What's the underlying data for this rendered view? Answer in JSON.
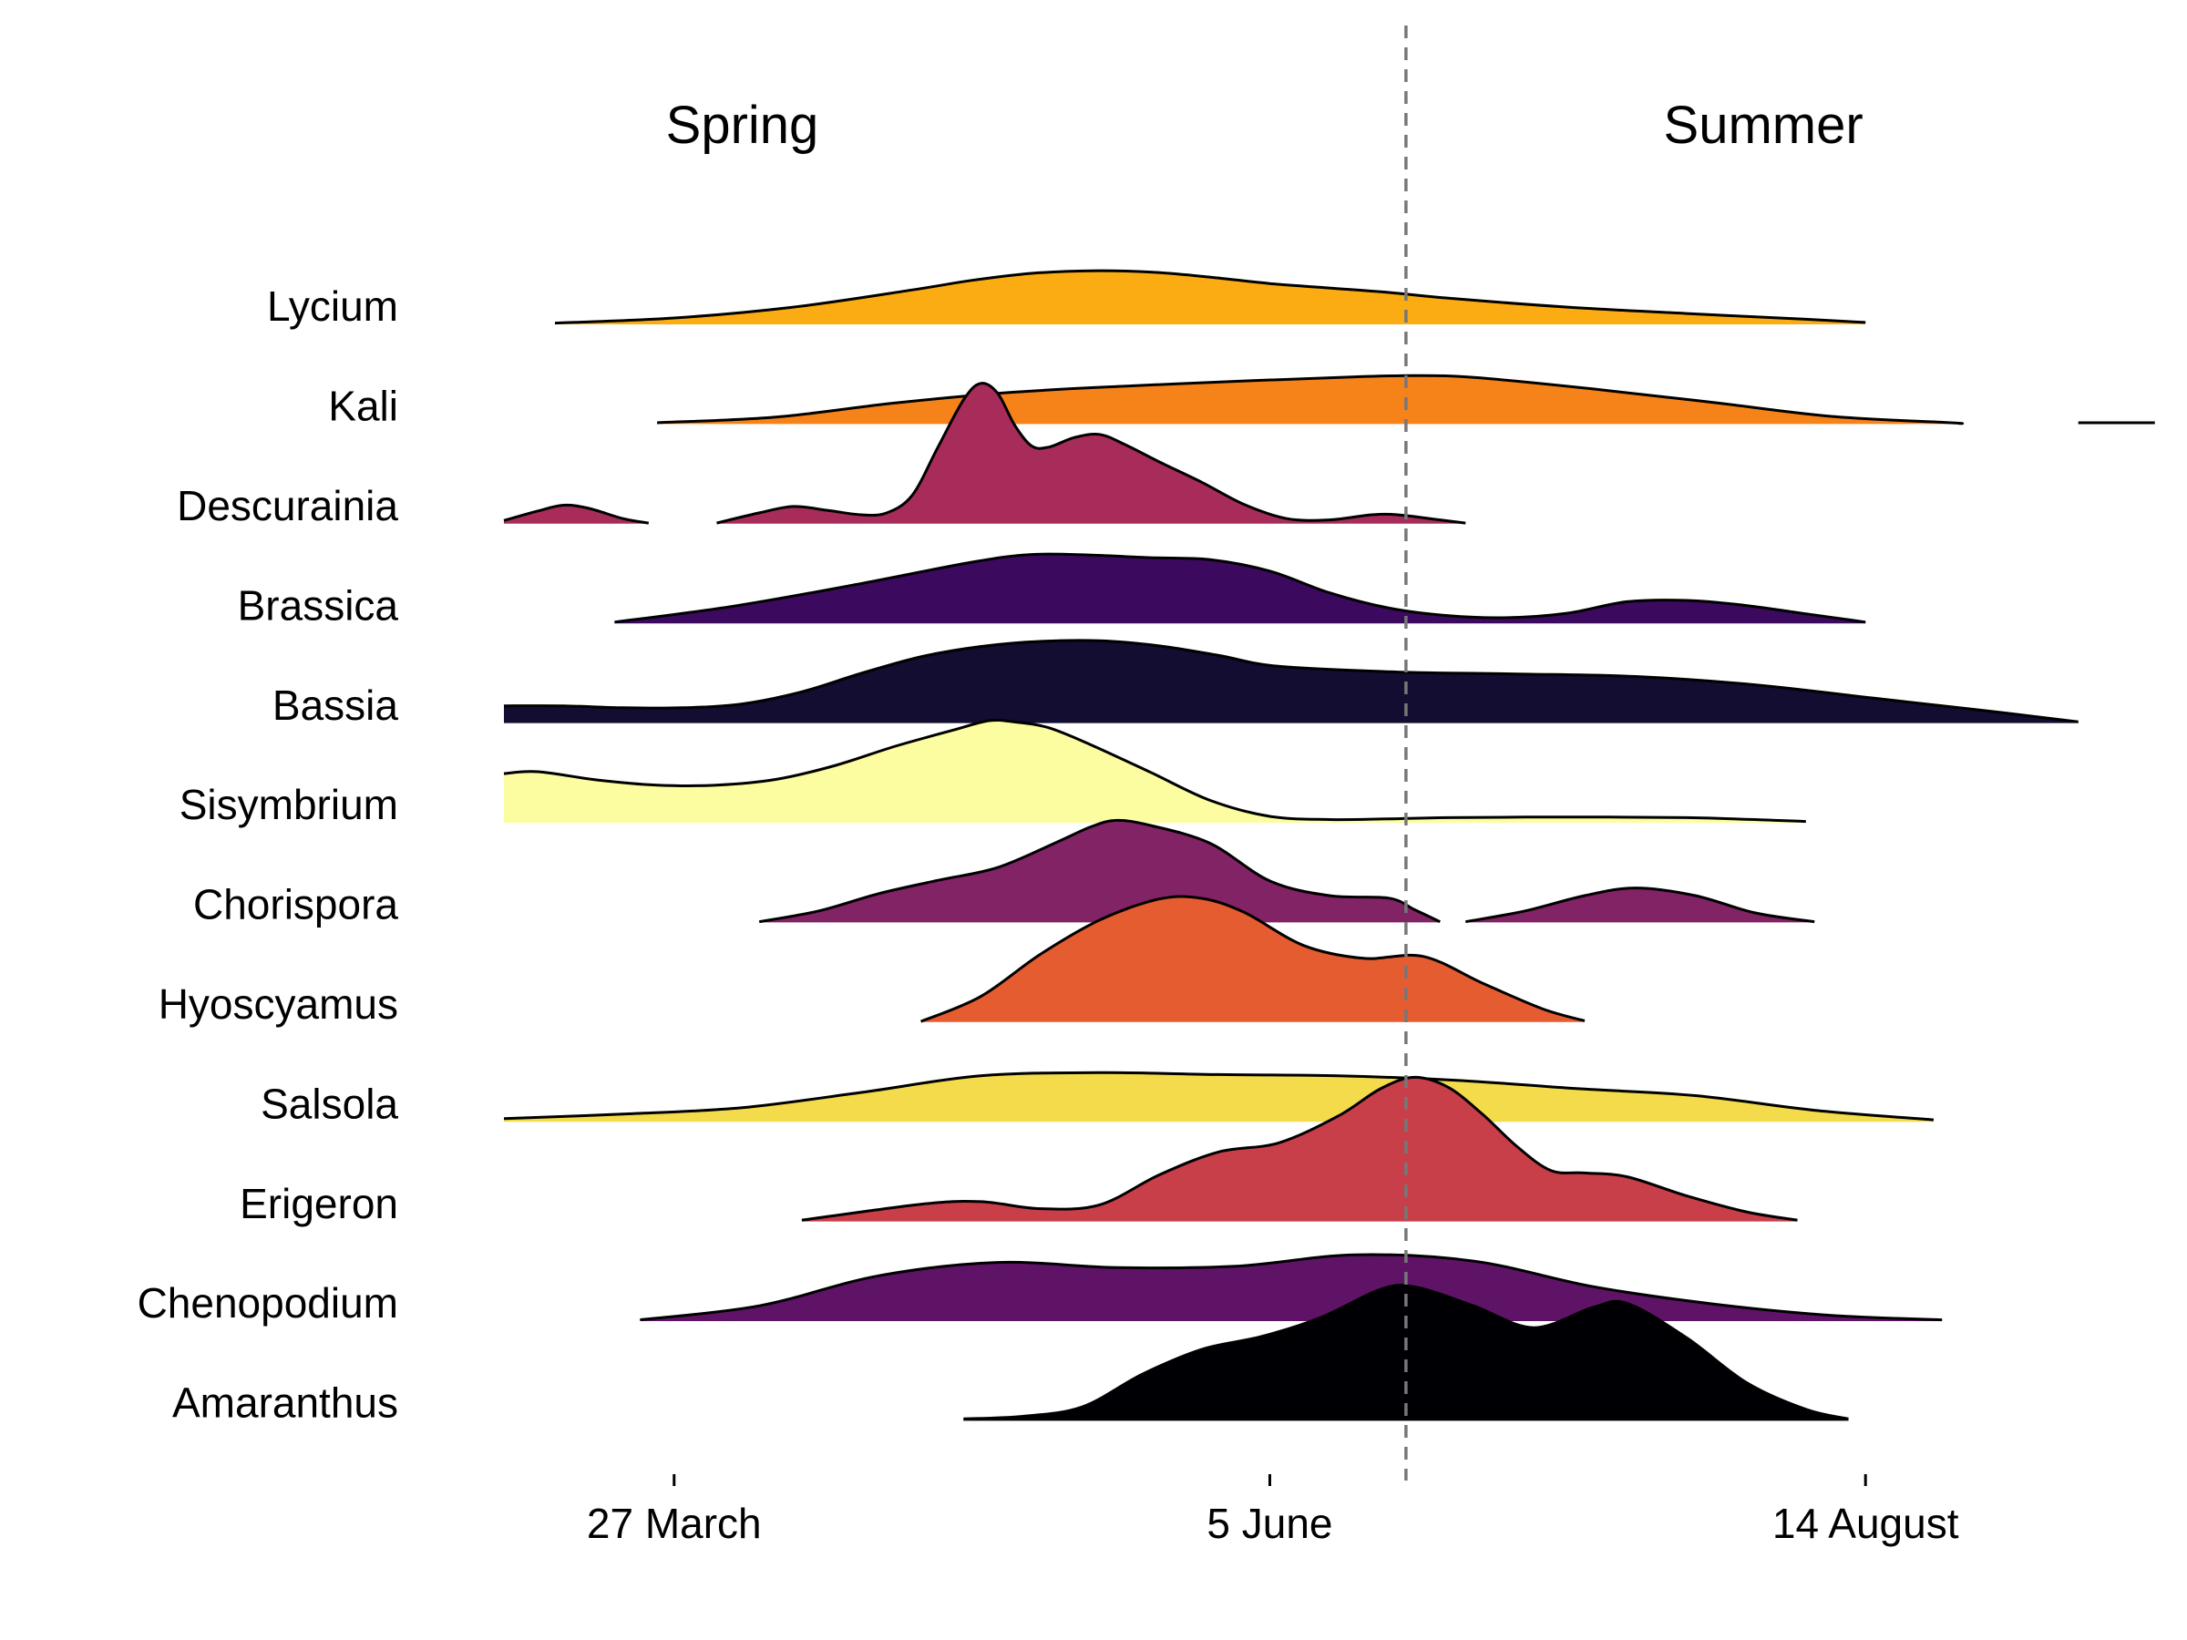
{
  "chart_data": {
    "type": "ridgeline",
    "title": "",
    "xlabel": "",
    "ylabel": "",
    "x_unit": "date",
    "xlim": [
      "2024-03-07",
      "2024-09-09"
    ],
    "x_ticks": [
      {
        "date": "2024-03-27",
        "label": "27 March"
      },
      {
        "date": "2024-06-05",
        "label": "5 June"
      },
      {
        "date": "2024-08-14",
        "label": "14 August"
      }
    ],
    "divider": {
      "date": "2024-06-21",
      "style": "dashed",
      "color": "#777777"
    },
    "season_labels": [
      {
        "label": "Spring",
        "date": "2024-04-04"
      },
      {
        "label": "Summer",
        "date": "2024-08-02"
      }
    ],
    "grid": false,
    "legend": "none",
    "series": [
      {
        "name": "Lycium",
        "color": "#FBAC13",
        "segments": [
          [
            [
              "2024-03-13",
              0.02
            ],
            [
              "2024-03-27",
              0.1
            ],
            [
              "2024-04-10",
              0.27
            ],
            [
              "2024-04-24",
              0.54
            ],
            [
              "2024-05-01",
              0.69
            ],
            [
              "2024-05-08",
              0.8
            ],
            [
              "2024-05-15",
              0.84
            ],
            [
              "2024-05-22",
              0.82
            ],
            [
              "2024-05-29",
              0.74
            ],
            [
              "2024-06-05",
              0.64
            ],
            [
              "2024-06-12",
              0.57
            ],
            [
              "2024-06-19",
              0.5
            ],
            [
              "2024-06-26",
              0.41
            ],
            [
              "2024-07-10",
              0.27
            ],
            [
              "2024-07-24",
              0.17
            ],
            [
              "2024-08-07",
              0.08
            ],
            [
              "2024-08-14",
              0.03
            ]
          ]
        ]
      },
      {
        "name": "Kali",
        "color": "#F6831A",
        "segments": [
          [
            [
              "2024-03-25",
              0.02
            ],
            [
              "2024-04-08",
              0.11
            ],
            [
              "2024-04-22",
              0.33
            ],
            [
              "2024-05-06",
              0.5
            ],
            [
              "2024-05-20",
              0.6
            ],
            [
              "2024-06-03",
              0.68
            ],
            [
              "2024-06-15",
              0.74
            ],
            [
              "2024-06-22",
              0.76
            ],
            [
              "2024-06-29",
              0.73
            ],
            [
              "2024-07-13",
              0.55
            ],
            [
              "2024-07-27",
              0.34
            ],
            [
              "2024-08-10",
              0.12
            ],
            [
              "2024-08-24",
              0.02
            ],
            [
              "2024-08-25",
              0.01
            ]
          ],
          [
            [
              "2024-09-08",
              0.02
            ],
            [
              "2024-09-17",
              0.02
            ]
          ]
        ]
      },
      {
        "name": "Descurainia",
        "color": "#A82C5A",
        "segments": [
          [
            [
              "2024-03-07",
              0.05
            ],
            [
              "2024-03-11",
              0.2
            ],
            [
              "2024-03-14",
              0.29
            ],
            [
              "2024-03-17",
              0.24
            ],
            [
              "2024-03-21",
              0.08
            ],
            [
              "2024-03-24",
              0.01
            ]
          ],
          [
            [
              "2024-04-01",
              0.01
            ],
            [
              "2024-04-06",
              0.17
            ],
            [
              "2024-04-10",
              0.27
            ],
            [
              "2024-04-14",
              0.21
            ],
            [
              "2024-04-18",
              0.14
            ],
            [
              "2024-04-21",
              0.17
            ],
            [
              "2024-04-24",
              0.45
            ],
            [
              "2024-04-27",
              1.2
            ],
            [
              "2024-04-30",
              1.94
            ],
            [
              "2024-05-02",
              2.2
            ],
            [
              "2024-05-04",
              2.05
            ],
            [
              "2024-05-06",
              1.55
            ],
            [
              "2024-05-08",
              1.22
            ],
            [
              "2024-05-10",
              1.2
            ],
            [
              "2024-05-13",
              1.35
            ],
            [
              "2024-05-16",
              1.4
            ],
            [
              "2024-05-19",
              1.24
            ],
            [
              "2024-05-23",
              0.97
            ],
            [
              "2024-05-28",
              0.65
            ],
            [
              "2024-06-02",
              0.3
            ],
            [
              "2024-06-07",
              0.08
            ],
            [
              "2024-06-12",
              0.06
            ],
            [
              "2024-06-17",
              0.14
            ],
            [
              "2024-06-20",
              0.14
            ],
            [
              "2024-06-25",
              0.06
            ],
            [
              "2024-06-28",
              0.01
            ]
          ]
        ]
      },
      {
        "name": "Brassica",
        "color": "#3B0A5E",
        "segments": [
          [
            [
              "2024-03-20",
              0.02
            ],
            [
              "2024-04-03",
              0.27
            ],
            [
              "2024-04-17",
              0.6
            ],
            [
              "2024-05-01",
              0.96
            ],
            [
              "2024-05-08",
              1.08
            ],
            [
              "2024-05-15",
              1.07
            ],
            [
              "2024-05-22",
              1.03
            ],
            [
              "2024-05-29",
              1.0
            ],
            [
              "2024-06-05",
              0.82
            ],
            [
              "2024-06-12",
              0.48
            ],
            [
              "2024-06-19",
              0.24
            ],
            [
              "2024-06-26",
              0.12
            ],
            [
              "2024-07-03",
              0.09
            ],
            [
              "2024-07-10",
              0.16
            ],
            [
              "2024-07-17",
              0.34
            ],
            [
              "2024-07-24",
              0.36
            ],
            [
              "2024-07-31",
              0.28
            ],
            [
              "2024-08-07",
              0.15
            ],
            [
              "2024-08-14",
              0.02
            ]
          ]
        ]
      },
      {
        "name": "Bassia",
        "color": "#120D31",
        "segments": [
          [
            [
              "2024-03-07",
              0.27
            ],
            [
              "2024-03-14",
              0.27
            ],
            [
              "2024-03-21",
              0.24
            ],
            [
              "2024-03-28",
              0.24
            ],
            [
              "2024-04-04",
              0.3
            ],
            [
              "2024-04-11",
              0.49
            ],
            [
              "2024-04-18",
              0.78
            ],
            [
              "2024-04-25",
              1.04
            ],
            [
              "2024-05-02",
              1.2
            ],
            [
              "2024-05-09",
              1.28
            ],
            [
              "2024-05-16",
              1.29
            ],
            [
              "2024-05-23",
              1.21
            ],
            [
              "2024-05-30",
              1.06
            ],
            [
              "2024-06-06",
              0.89
            ],
            [
              "2024-06-20",
              0.8
            ],
            [
              "2024-07-04",
              0.77
            ],
            [
              "2024-07-18",
              0.73
            ],
            [
              "2024-08-01",
              0.6
            ],
            [
              "2024-08-15",
              0.39
            ],
            [
              "2024-08-29",
              0.18
            ],
            [
              "2024-09-08",
              0.02
            ]
          ]
        ]
      },
      {
        "name": "Sisymbrium",
        "color": "#FBFDA0",
        "segments": [
          [
            [
              "2024-03-07",
              0.77
            ],
            [
              "2024-03-11",
              0.8
            ],
            [
              "2024-03-18",
              0.67
            ],
            [
              "2024-03-25",
              0.59
            ],
            [
              "2024-04-01",
              0.59
            ],
            [
              "2024-04-08",
              0.68
            ],
            [
              "2024-04-15",
              0.9
            ],
            [
              "2024-04-22",
              1.2
            ],
            [
              "2024-04-29",
              1.46
            ],
            [
              "2024-05-03",
              1.6
            ],
            [
              "2024-05-06",
              1.58
            ],
            [
              "2024-05-10",
              1.49
            ],
            [
              "2024-05-15",
              1.22
            ],
            [
              "2024-05-22",
              0.79
            ],
            [
              "2024-05-29",
              0.35
            ],
            [
              "2024-06-05",
              0.1
            ],
            [
              "2024-06-12",
              0.05
            ],
            [
              "2024-06-19",
              0.06
            ],
            [
              "2024-06-26",
              0.08
            ],
            [
              "2024-07-10",
              0.09
            ],
            [
              "2024-07-24",
              0.08
            ],
            [
              "2024-08-03",
              0.04
            ],
            [
              "2024-08-07",
              0.02
            ]
          ]
        ]
      },
      {
        "name": "Chorispora",
        "color": "#822366",
        "segments": [
          [
            [
              "2024-04-06",
              0.01
            ],
            [
              "2024-04-13",
              0.18
            ],
            [
              "2024-04-20",
              0.45
            ],
            [
              "2024-04-27",
              0.66
            ],
            [
              "2024-05-04",
              0.86
            ],
            [
              "2024-05-11",
              1.26
            ],
            [
              "2024-05-15",
              1.5
            ],
            [
              "2024-05-18",
              1.6
            ],
            [
              "2024-05-22",
              1.52
            ],
            [
              "2024-05-29",
              1.24
            ],
            [
              "2024-06-05",
              0.65
            ],
            [
              "2024-06-12",
              0.42
            ],
            [
              "2024-06-19",
              0.38
            ],
            [
              "2024-06-22",
              0.2
            ],
            [
              "2024-06-25",
              0.01
            ]
          ],
          [
            [
              "2024-06-28",
              0.01
            ],
            [
              "2024-07-05",
              0.18
            ],
            [
              "2024-07-12",
              0.42
            ],
            [
              "2024-07-18",
              0.54
            ],
            [
              "2024-07-25",
              0.42
            ],
            [
              "2024-08-01",
              0.15
            ],
            [
              "2024-08-08",
              0.01
            ]
          ]
        ]
      },
      {
        "name": "Hyoscyamus",
        "color": "#E55C30",
        "segments": [
          [
            [
              "2024-04-25",
              0.01
            ],
            [
              "2024-05-02",
              0.4
            ],
            [
              "2024-05-09",
              1.06
            ],
            [
              "2024-05-16",
              1.6
            ],
            [
              "2024-05-23",
              1.93
            ],
            [
              "2024-05-28",
              1.94
            ],
            [
              "2024-06-02",
              1.72
            ],
            [
              "2024-06-09",
              1.2
            ],
            [
              "2024-06-16",
              1.0
            ],
            [
              "2024-06-23",
              1.03
            ],
            [
              "2024-06-30",
              0.61
            ],
            [
              "2024-07-07",
              0.21
            ],
            [
              "2024-07-12",
              0.02
            ]
          ]
        ]
      },
      {
        "name": "Salsola",
        "color": "#F3DB4B",
        "segments": [
          [
            [
              "2024-03-07",
              0.05
            ],
            [
              "2024-03-21",
              0.12
            ],
            [
              "2024-04-04",
              0.22
            ],
            [
              "2024-04-18",
              0.46
            ],
            [
              "2024-05-02",
              0.72
            ],
            [
              "2024-05-16",
              0.77
            ],
            [
              "2024-05-30",
              0.74
            ],
            [
              "2024-06-13",
              0.72
            ],
            [
              "2024-06-27",
              0.65
            ],
            [
              "2024-07-11",
              0.52
            ],
            [
              "2024-07-25",
              0.41
            ],
            [
              "2024-08-08",
              0.18
            ],
            [
              "2024-08-22",
              0.03
            ]
          ]
        ]
      },
      {
        "name": "Erigeron",
        "color": "#C83F4A",
        "segments": [
          [
            [
              "2024-04-11",
              0.02
            ],
            [
              "2024-04-25",
              0.27
            ],
            [
              "2024-05-02",
              0.31
            ],
            [
              "2024-05-09",
              0.2
            ],
            [
              "2024-05-16",
              0.26
            ],
            [
              "2024-05-23",
              0.73
            ],
            [
              "2024-05-30",
              1.09
            ],
            [
              "2024-06-06",
              1.23
            ],
            [
              "2024-06-13",
              1.65
            ],
            [
              "2024-06-18",
              2.08
            ],
            [
              "2024-06-22",
              2.26
            ],
            [
              "2024-06-26",
              2.1
            ],
            [
              "2024-06-30",
              1.68
            ],
            [
              "2024-07-04",
              1.18
            ],
            [
              "2024-07-08",
              0.8
            ],
            [
              "2024-07-12",
              0.76
            ],
            [
              "2024-07-17",
              0.7
            ],
            [
              "2024-07-24",
              0.4
            ],
            [
              "2024-07-31",
              0.15
            ],
            [
              "2024-08-06",
              0.02
            ]
          ]
        ]
      },
      {
        "name": "Chenopodium",
        "color": "#5F1367",
        "segments": [
          [
            [
              "2024-03-23",
              0.02
            ],
            [
              "2024-04-06",
              0.24
            ],
            [
              "2024-04-20",
              0.71
            ],
            [
              "2024-05-04",
              0.92
            ],
            [
              "2024-05-18",
              0.84
            ],
            [
              "2024-06-01",
              0.86
            ],
            [
              "2024-06-15",
              1.04
            ],
            [
              "2024-06-29",
              0.94
            ],
            [
              "2024-07-13",
              0.54
            ],
            [
              "2024-07-27",
              0.27
            ],
            [
              "2024-08-10",
              0.09
            ],
            [
              "2024-08-23",
              0.02
            ]
          ]
        ]
      },
      {
        "name": "Amaranthus",
        "color": "#000004",
        "segments": [
          [
            [
              "2024-04-30",
              0.03
            ],
            [
              "2024-05-07",
              0.07
            ],
            [
              "2024-05-14",
              0.22
            ],
            [
              "2024-05-21",
              0.73
            ],
            [
              "2024-05-28",
              1.12
            ],
            [
              "2024-06-04",
              1.32
            ],
            [
              "2024-06-11",
              1.62
            ],
            [
              "2024-06-18",
              2.06
            ],
            [
              "2024-06-22",
              2.1
            ],
            [
              "2024-06-29",
              1.8
            ],
            [
              "2024-07-06",
              1.46
            ],
            [
              "2024-07-13",
              1.78
            ],
            [
              "2024-07-17",
              1.84
            ],
            [
              "2024-07-24",
              1.3
            ],
            [
              "2024-07-31",
              0.6
            ],
            [
              "2024-08-07",
              0.18
            ],
            [
              "2024-08-12",
              0.03
            ]
          ]
        ]
      }
    ]
  }
}
